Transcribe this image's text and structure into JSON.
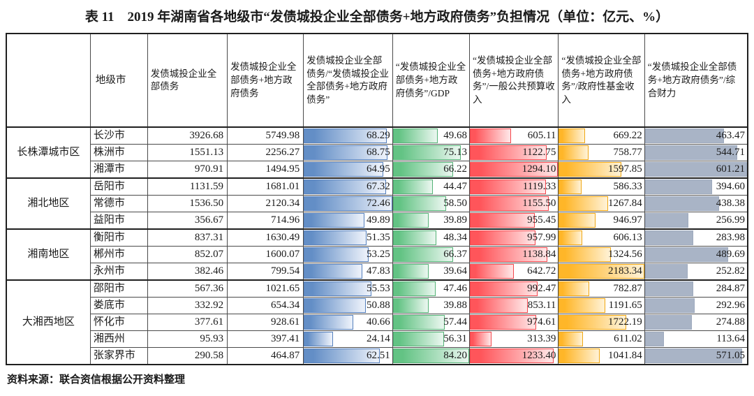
{
  "title": "表 11　2019 年湖南省各地级市“发债城投企业全部债务+地方政府债务”负担情况（单位：亿元、%）",
  "source_note": "资料来源：联合资信根据公开资料整理",
  "bar_styles": {
    "blue": {
      "fill": "#638EC6",
      "fade": "#e9eff9",
      "border": "#5580bd"
    },
    "green": {
      "fill": "#63C384",
      "fade": "#e6f5ec",
      "border": "#55b377"
    },
    "red": {
      "fill": "#FF555A",
      "fade": "#ffe2e3",
      "border": "#f2474d"
    },
    "orange": {
      "fill": "#FFB628",
      "fade": "#fff0d0",
      "border": "#f0a714"
    },
    "gray": {
      "fill": "#A9B4C6",
      "fade": "#A9B4C6",
      "border": "#9da9bd"
    }
  },
  "table": {
    "columns": [
      {
        "key": "region",
        "label": ""
      },
      {
        "key": "city",
        "label": "地级市"
      },
      {
        "key": "v0",
        "label": "发债城投企业全部债务"
      },
      {
        "key": "v1",
        "label": "发债城投企业全部债务+地方政府债务"
      },
      {
        "key": "v2",
        "label": "发债城投企业全部债务/“发债城投企业全部债务+地方政府债务”",
        "bar": "blue"
      },
      {
        "key": "v3",
        "label": "“发债城投企业全部债务+地方政府债务”/GDP",
        "bar": "green"
      },
      {
        "key": "v4",
        "label": "“发债城投企业全部债务+地方政府债务”/一般公共预算收入",
        "bar": "red"
      },
      {
        "key": "v5",
        "label": "“发债城投企业全部债务+地方政府债务”/政府性基金收入",
        "bar": "orange"
      },
      {
        "key": "v6",
        "label": "“发债城投企业全部债务+地方政府债务”/综合财力",
        "bar": "gray"
      }
    ],
    "groups": [
      {
        "region": "长株潭城市区",
        "rows": [
          [
            "长沙市",
            "3926.68",
            "5749.98",
            "68.29",
            "49.68",
            "605.11",
            "669.22",
            "463.47"
          ],
          [
            "株洲市",
            "1551.13",
            "2256.27",
            "68.75",
            "75.13",
            "1122.75",
            "758.77",
            "544.71"
          ],
          [
            "湘潭市",
            "970.91",
            "1494.95",
            "64.95",
            "66.22",
            "1294.10",
            "1597.85",
            "601.21"
          ]
        ]
      },
      {
        "region": "湘北地区",
        "rows": [
          [
            "岳阳市",
            "1131.59",
            "1681.01",
            "67.32",
            "44.47",
            "1119.33",
            "586.33",
            "394.60"
          ],
          [
            "常德市",
            "1536.50",
            "2120.34",
            "72.46",
            "58.50",
            "1155.50",
            "1267.84",
            "438.38"
          ],
          [
            "益阳市",
            "356.67",
            "714.96",
            "49.89",
            "39.89",
            "955.45",
            "946.97",
            "256.99"
          ]
        ]
      },
      {
        "region": "湘南地区",
        "rows": [
          [
            "衡阳市",
            "837.31",
            "1630.49",
            "51.35",
            "48.34",
            "957.99",
            "606.13",
            "283.98"
          ],
          [
            "郴州市",
            "852.07",
            "1600.07",
            "53.25",
            "66.37",
            "1138.84",
            "1324.56",
            "489.69"
          ],
          [
            "永州市",
            "382.46",
            "799.54",
            "47.83",
            "39.64",
            "642.72",
            "2183.34",
            "252.82"
          ]
        ]
      },
      {
        "region": "大湘西地区",
        "rows": [
          [
            "邵阳市",
            "567.36",
            "1021.65",
            "55.53",
            "47.46",
            "992.47",
            "782.87",
            "284.87"
          ],
          [
            "娄底市",
            "332.92",
            "654.34",
            "50.88",
            "39.88",
            "853.11",
            "1191.65",
            "292.96"
          ],
          [
            "怀化市",
            "377.61",
            "928.61",
            "40.66",
            "57.44",
            "974.61",
            "1722.19",
            "274.88"
          ],
          [
            "湘西州",
            "95.93",
            "397.41",
            "24.14",
            "56.31",
            "313.39",
            "611.02",
            "113.64"
          ],
          [
            "张家界市",
            "290.58",
            "464.87",
            "62.51",
            "84.20",
            "1233.40",
            "1041.84",
            "571.05"
          ]
        ]
      }
    ]
  }
}
